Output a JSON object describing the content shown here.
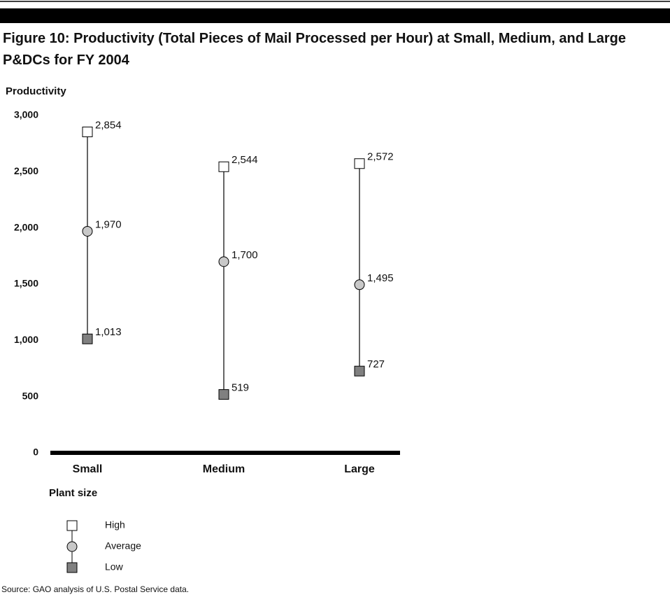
{
  "chart_data": {
    "type": "hilo",
    "title": "Figure 10:  Productivity (Total Pieces of Mail Processed per Hour) at Small, Medium, and Large P&DCs for FY 2004",
    "y_label": "Productivity",
    "x_label": "Plant size",
    "source": "Source: GAO analysis of U.S. Postal Service data.",
    "categories": [
      "Small",
      "Medium",
      "Large"
    ],
    "series": [
      {
        "name": "High",
        "color": "#ffffff",
        "marker": "square",
        "values": [
          2854,
          2544,
          2572
        ],
        "value_labels": [
          "2,854",
          "2,544",
          "2,572"
        ]
      },
      {
        "name": "Average",
        "color": "#c8c8c8",
        "marker": "circle",
        "values": [
          1970,
          1700,
          1495
        ],
        "value_labels": [
          "1,970",
          "1,700",
          "1,495"
        ]
      },
      {
        "name": "Low",
        "color": "#808080",
        "marker": "square",
        "values": [
          1013,
          519,
          727
        ],
        "value_labels": [
          "1,013",
          "519",
          "727"
        ]
      }
    ],
    "ylim": [
      0,
      3000
    ],
    "yticks": [
      0,
      500,
      {
        "value": 1000,
        "label": "1,000"
      },
      {
        "value": 1500,
        "label": "1,500"
      },
      {
        "value": 2000,
        "label": "2,000"
      },
      {
        "value": 2500,
        "label": "2,500"
      },
      {
        "value": 3000,
        "label": "3,000"
      }
    ]
  }
}
